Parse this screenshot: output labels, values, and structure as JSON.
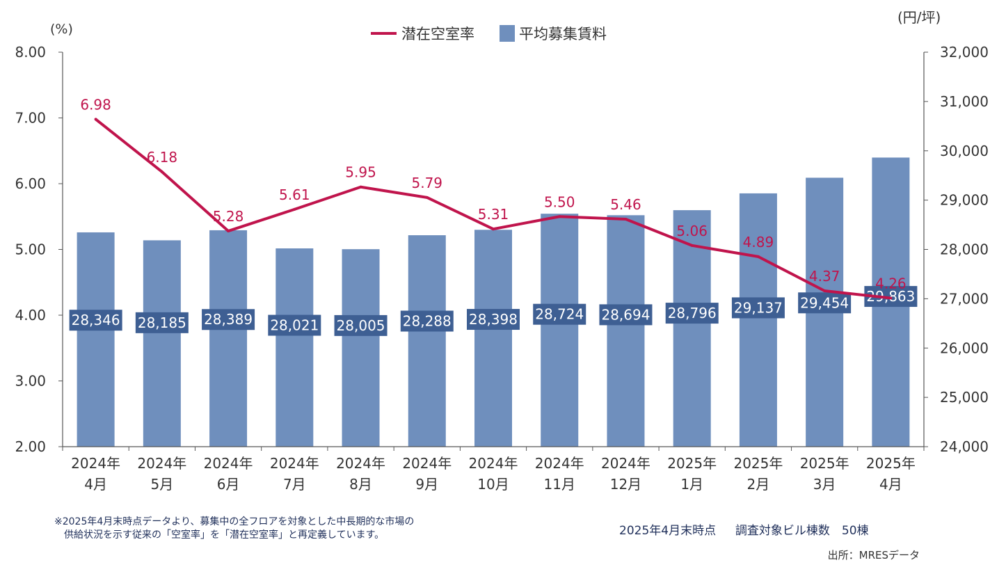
{
  "chart_data": {
    "type": "bar+line",
    "left_axis_unit": "(%)",
    "right_axis_unit": "(円/坪)",
    "left_ylim": [
      2.0,
      8.0
    ],
    "right_ylim": [
      24000,
      32000
    ],
    "left_ticks": [
      "2.00",
      "3.00",
      "4.00",
      "5.00",
      "6.00",
      "7.00",
      "8.00"
    ],
    "right_ticks": [
      "24,000",
      "25,000",
      "26,000",
      "27,000",
      "28,000",
      "29,000",
      "30,000",
      "31,000",
      "32,000"
    ],
    "categories": [
      [
        "2024年",
        "4月"
      ],
      [
        "2024年",
        "5月"
      ],
      [
        "2024年",
        "6月"
      ],
      [
        "2024年",
        "7月"
      ],
      [
        "2024年",
        "8月"
      ],
      [
        "2024年",
        "9月"
      ],
      [
        "2024年",
        "10月"
      ],
      [
        "2024年",
        "11月"
      ],
      [
        "2024年",
        "12月"
      ],
      [
        "2025年",
        "1月"
      ],
      [
        "2025年",
        "2月"
      ],
      [
        "2025年",
        "3月"
      ],
      [
        "2025年",
        "4月"
      ]
    ],
    "series": [
      {
        "name": "潜在空室率",
        "type": "line",
        "axis": "left",
        "color": "#c0144c",
        "values": [
          6.98,
          6.18,
          5.28,
          5.61,
          5.95,
          5.79,
          5.31,
          5.5,
          5.46,
          5.06,
          4.89,
          4.37,
          4.26
        ],
        "labels": [
          "6.98",
          "6.18",
          "5.28",
          "5.61",
          "5.95",
          "5.79",
          "5.31",
          "5.50",
          "5.46",
          "5.06",
          "4.89",
          "4.37",
          "4.26"
        ]
      },
      {
        "name": "平均募集賃料",
        "type": "bar",
        "axis": "right",
        "color": "#6f8fbd",
        "values": [
          28346,
          28185,
          28389,
          28021,
          28005,
          28288,
          28398,
          28724,
          28694,
          28796,
          29137,
          29454,
          29863
        ],
        "labels": [
          "28,346",
          "28,185",
          "28,389",
          "28,021",
          "28,005",
          "28,288",
          "28,398",
          "28,724",
          "28,694",
          "28,796",
          "29,137",
          "29,454",
          "29,863"
        ]
      }
    ],
    "legend_position": "top-center",
    "grid": false
  },
  "notes": {
    "footnote": "※2025年4月末時点データより、募集中の全フロアを対象とした中長期的な市場の\n　供給状況を示す従来の「空室率」を「潜在空室率」と再定義しています。",
    "survey": "2025年4月末時点　  調査対象ビル棟数　50棟",
    "source": "出所：MRESデータ"
  }
}
